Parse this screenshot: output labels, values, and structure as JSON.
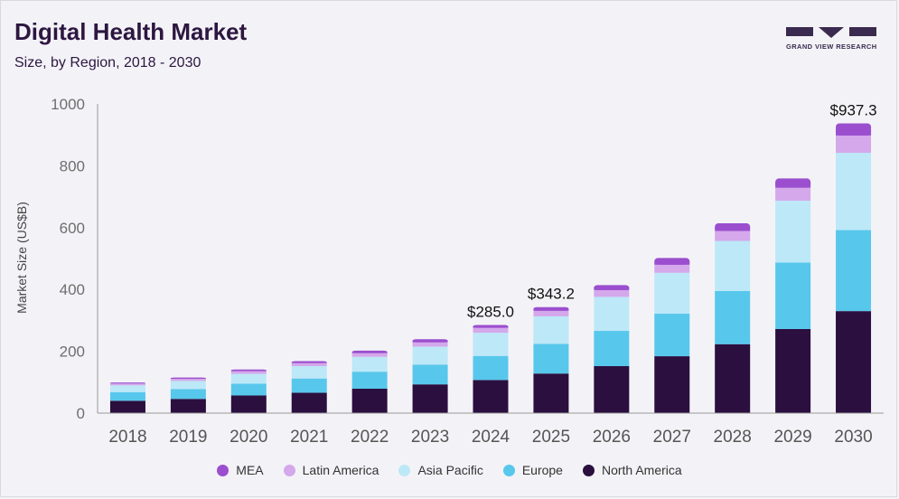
{
  "header": {
    "title": "Digital Health Market",
    "subtitle": "Size, by Region, 2018 - 2030",
    "logo_text": "GRAND VIEW RESEARCH"
  },
  "colors": {
    "MEA": "#9b4fcf",
    "Latin America": "#d4a8eb",
    "Asia Pacific": "#bde8f7",
    "Europe": "#58c7ec",
    "North America": "#2b0f3f",
    "axis": "#6e6e6e",
    "title": "#2d1640"
  },
  "legend": [
    {
      "label": "MEA",
      "color": "#9b4fcf"
    },
    {
      "label": "Latin America",
      "color": "#d4a8eb"
    },
    {
      "label": "Asia Pacific",
      "color": "#bde8f7"
    },
    {
      "label": "Europe",
      "color": "#58c7ec"
    },
    {
      "label": "North America",
      "color": "#2b0f3f"
    }
  ],
  "chart_data": {
    "type": "bar",
    "stacked": true,
    "title": "Digital Health Market",
    "subtitle": "Size, by Region, 2018 - 2030",
    "xlabel": "",
    "ylabel": "Market Size (US$B)",
    "ylim": [
      0,
      1000
    ],
    "yticks": [
      0,
      200,
      400,
      600,
      800,
      1000
    ],
    "categories": [
      "2018",
      "2019",
      "2020",
      "2021",
      "2022",
      "2023",
      "2024",
      "2025",
      "2026",
      "2027",
      "2028",
      "2029",
      "2030"
    ],
    "series": [
      {
        "name": "North America",
        "values": [
          40,
          46,
          57,
          66,
          79,
          93,
          107,
          128,
          152,
          184,
          223,
          272,
          330
        ]
      },
      {
        "name": "Europe",
        "values": [
          28,
          32,
          38,
          46,
          55,
          64,
          78,
          96,
          114,
          138,
          172,
          215,
          262
        ]
      },
      {
        "name": "Asia Pacific",
        "values": [
          22,
          26,
          32,
          40,
          48,
          58,
          75,
          89,
          110,
          132,
          162,
          200,
          250
        ]
      },
      {
        "name": "Latin America",
        "values": [
          6,
          7,
          9,
          10,
          12,
          14,
          16,
          18,
          22,
          26,
          32,
          42,
          56
        ]
      },
      {
        "name": "MEA",
        "values": [
          3,
          4,
          5,
          6,
          8,
          10,
          9,
          12,
          16,
          22,
          25,
          30,
          39.3
        ]
      }
    ],
    "annotations": [
      {
        "category": "2024",
        "text": "$285.0"
      },
      {
        "category": "2025",
        "text": "$343.2"
      },
      {
        "category": "2030",
        "text": "$937.3"
      }
    ]
  }
}
